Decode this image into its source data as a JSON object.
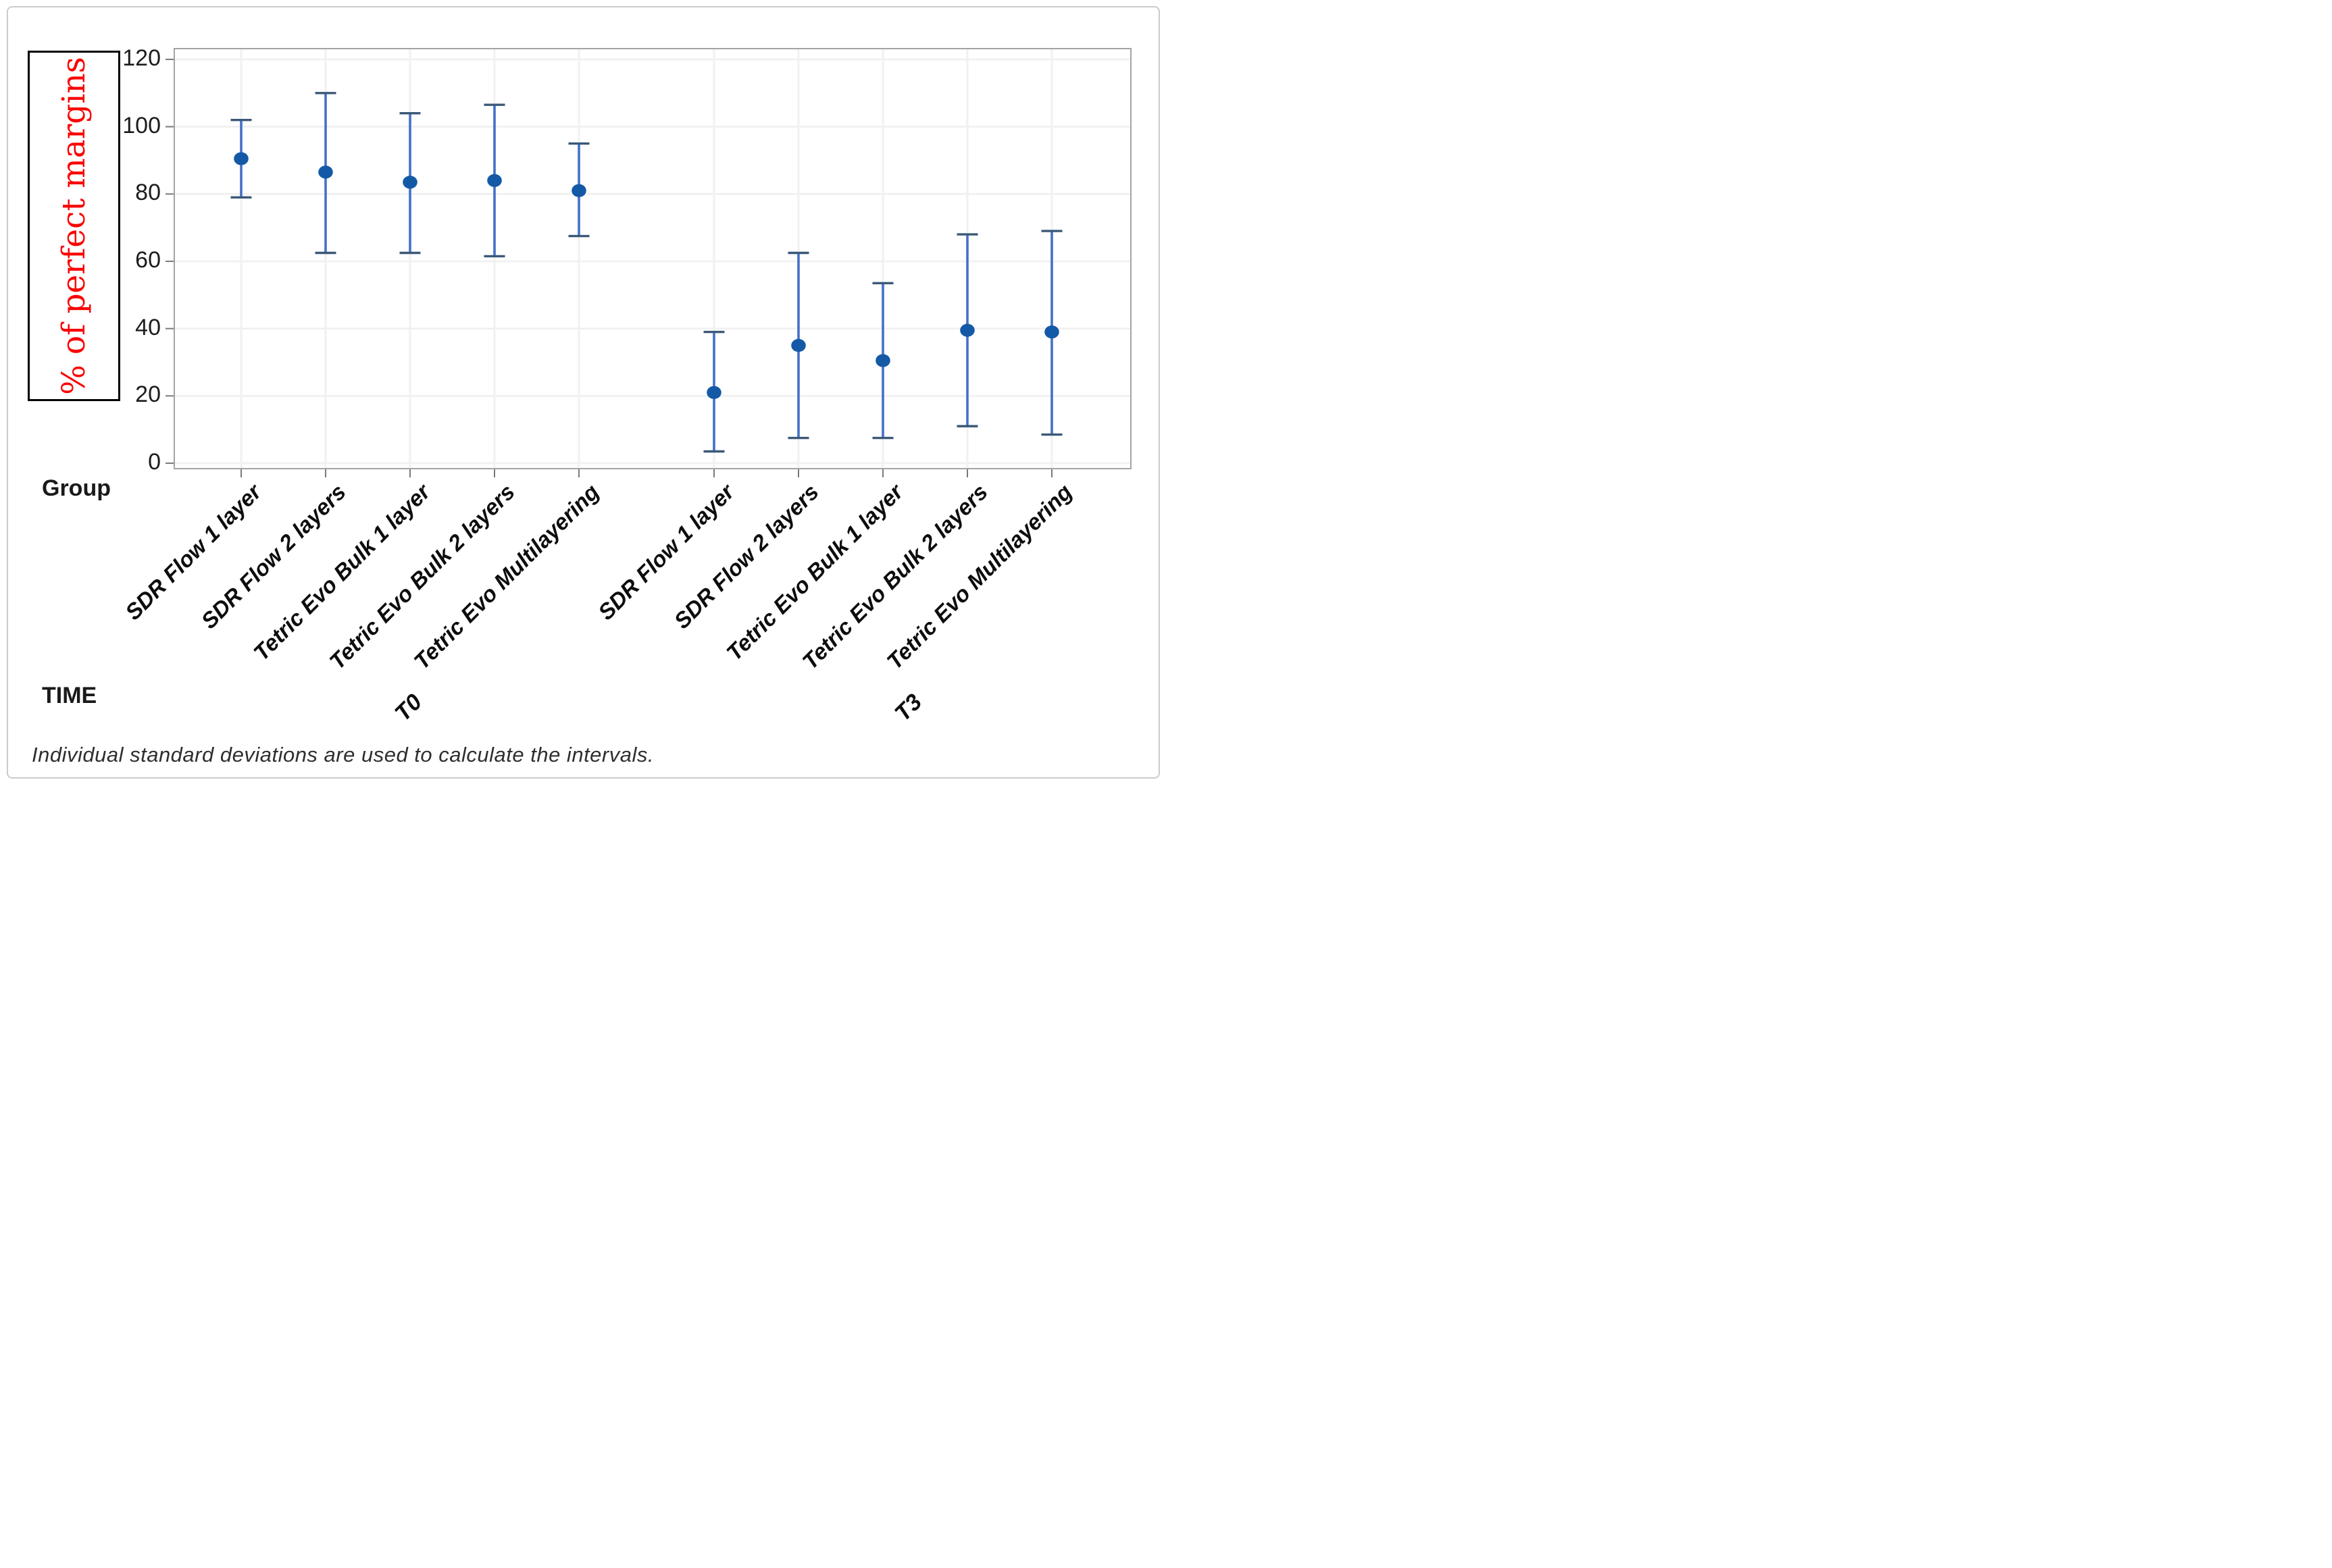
{
  "figure": {
    "ylabel": {
      "text": "% of perfect margins",
      "color": "#fa0000"
    },
    "footnote": "Individual standard deviations are used to calculate the intervals.",
    "x_axis": {
      "group_row_label": "Group",
      "time_row_label": "TIME",
      "time_labels": [
        "T0",
        "T3"
      ]
    },
    "y_axis": {
      "ticks": [
        0,
        20,
        40,
        60,
        80,
        100,
        120
      ]
    }
  },
  "chart_data": {
    "type": "scatter",
    "subtype": "interval-plot-mean-with-error-bars",
    "title": "",
    "xlabel": "Group / TIME",
    "ylabel": "% of perfect margins",
    "ylim": [
      0,
      120
    ],
    "ytick_step": 20,
    "grid": true,
    "legend": "none",
    "annotation": "Individual standard deviations are used to calculate the intervals.",
    "points": [
      {
        "group": "SDR Flow 1 layer",
        "time": "T0",
        "mean": 90.5,
        "lower": 79.0,
        "upper": 102.0
      },
      {
        "group": "SDR Flow 2 layers",
        "time": "T0",
        "mean": 86.5,
        "lower": 62.5,
        "upper": 110.0
      },
      {
        "group": "Tetric Evo Bulk 1 layer",
        "time": "T0",
        "mean": 83.5,
        "lower": 62.5,
        "upper": 104.0
      },
      {
        "group": "Tetric Evo Bulk 2 layers",
        "time": "T0",
        "mean": 84.0,
        "lower": 61.5,
        "upper": 106.5
      },
      {
        "group": "Tetric Evo Multilayering",
        "time": "T0",
        "mean": 81.0,
        "lower": 67.5,
        "upper": 95.0
      },
      {
        "group": "SDR Flow 1 layer",
        "time": "T3",
        "mean": 21.0,
        "lower": 3.5,
        "upper": 39.0
      },
      {
        "group": "SDR Flow 2 layers",
        "time": "T3",
        "mean": 35.0,
        "lower": 7.5,
        "upper": 62.5
      },
      {
        "group": "Tetric Evo Bulk 1 layer",
        "time": "T3",
        "mean": 30.5,
        "lower": 7.5,
        "upper": 53.5
      },
      {
        "group": "Tetric Evo Bulk 2 layers",
        "time": "T3",
        "mean": 39.5,
        "lower": 11.0,
        "upper": 68.0
      },
      {
        "group": "Tetric Evo Multilayering",
        "time": "T3",
        "mean": 39.0,
        "lower": 8.5,
        "upper": 69.0
      }
    ]
  },
  "colors": {
    "marker_fill": "#1459a6",
    "bar_line": "#4470c8",
    "bar_cap": "#3b5878",
    "gridline": "#f1f1f1",
    "plot_border": "#a3a3a3",
    "tick_mark": "#7a7a7a",
    "ylabel_red": "#fa0000"
  }
}
